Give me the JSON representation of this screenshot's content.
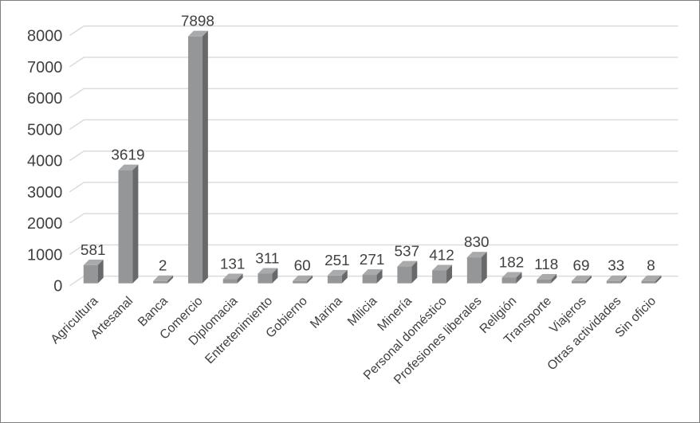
{
  "chart_data": {
    "type": "bar",
    "style": "3d-column",
    "title": "",
    "xlabel": "",
    "ylabel": "",
    "categories": [
      "Agricultura",
      "Artesanal",
      "Banca",
      "Comercio",
      "Diplomacia",
      "Entretenimiento",
      "Gobierno",
      "Marina",
      "Milicia",
      "Minería",
      "Personal doméstico",
      "Profesiones liberales",
      "Religión",
      "Transporte",
      "Viajeros",
      "Otras actividades",
      "Sin oficio"
    ],
    "values": [
      581,
      3619,
      2,
      7898,
      131,
      311,
      60,
      251,
      271,
      537,
      412,
      830,
      182,
      118,
      69,
      33,
      8
    ],
    "data_labels_visible": true,
    "yticks": [
      "0",
      "1000",
      "2000",
      "3000",
      "4000",
      "5000",
      "6000",
      "7000",
      "8000"
    ],
    "ylim": [
      0,
      8000
    ],
    "grid": true,
    "legend_position": "none",
    "category_label_rotation_deg": 45,
    "colors": {
      "bar_front": "#949698",
      "bar_side": "#67696b",
      "bar_top": "#a8aaac",
      "gridline": "#d9d9d9",
      "text": "#404040",
      "border": "#7f7f7f",
      "background": "#ffffff"
    }
  }
}
